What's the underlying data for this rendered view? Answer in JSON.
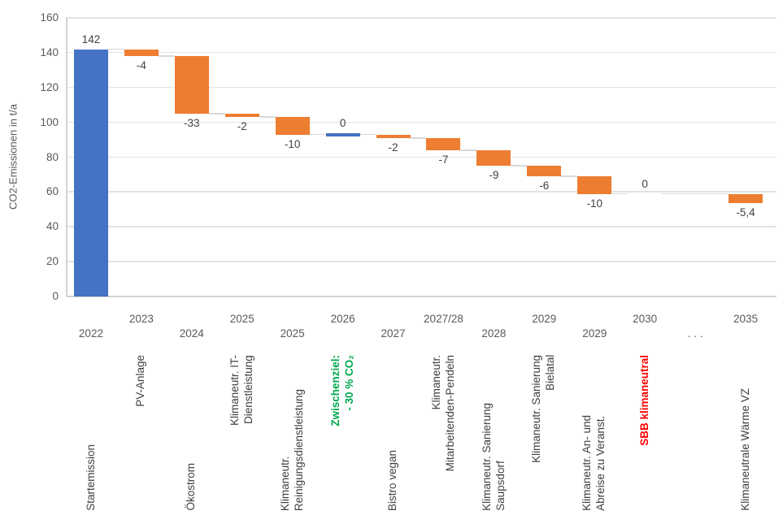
{
  "chart_data": {
    "type": "waterfall",
    "title": "",
    "ylabel": "CO2-Emissionen in t/a",
    "ylim": [
      0,
      160
    ],
    "yticks": [
      0,
      20,
      40,
      60,
      80,
      100,
      120,
      140,
      160
    ],
    "grid": "horizontal",
    "legend": "none",
    "colors": {
      "start_bar": "#4472C4",
      "decrease_bar": "#ED7D31",
      "milestone_line": "#4472C4",
      "connector": "#D9D9D9",
      "gridline": "#E3E3E3",
      "axis_line": "#D2D2D2",
      "axis_text": "#595959",
      "value_label": "#404040",
      "category_label": "#404040",
      "highlight_green": "#00A94F",
      "highlight_red": "#FF0000"
    },
    "categories": [
      {
        "year": "2022",
        "year_row": "lower",
        "label": "Startemission",
        "label_anchor": "bottom",
        "kind": "start",
        "value": 142,
        "value_label": "142",
        "cumulative_after": 142
      },
      {
        "year": "2023",
        "year_row": "upper",
        "label": "PV-Anlage",
        "label_anchor": "top",
        "kind": "decrease",
        "value": -4,
        "value_label": "-4",
        "cumulative_after": 138
      },
      {
        "year": "2024",
        "year_row": "lower",
        "label": "Ökostrom",
        "label_anchor": "bottom",
        "kind": "decrease",
        "value": -33,
        "value_label": "-33",
        "cumulative_after": 105
      },
      {
        "year": "2025",
        "year_row": "upper",
        "label": "Klimaneutr. IT-\nDienstleistung",
        "label_anchor": "top",
        "kind": "decrease",
        "value": -2,
        "value_label": "-2",
        "cumulative_after": 103
      },
      {
        "year": "2025",
        "year_row": "lower",
        "label": "Klimaneutr.\nReinigungsdienstleistung",
        "label_anchor": "bottom",
        "kind": "decrease",
        "value": -10,
        "value_label": "-10",
        "cumulative_after": 93
      },
      {
        "year": "2026",
        "year_row": "upper",
        "label": "Zwischenziel:\n- 30 % CO₂",
        "label_anchor": "top",
        "label_color": "#00A94F",
        "label_bold": true,
        "kind": "milestone",
        "value": 0,
        "value_label": "0",
        "cumulative_after": 93
      },
      {
        "year": "2027",
        "year_row": "lower",
        "label": "Bistro vegan",
        "label_anchor": "bottom",
        "kind": "decrease",
        "value": -2,
        "value_label": "-2",
        "cumulative_after": 91
      },
      {
        "year": "2027/28",
        "year_row": "upper",
        "label": "Klimaneutr.\nMitarbeitenden-Pendeln",
        "label_anchor": "top",
        "kind": "decrease",
        "value": -7,
        "value_label": "-7",
        "cumulative_after": 84
      },
      {
        "year": "2028",
        "year_row": "lower",
        "label": "Klimaneutr. Sanierung\nSaupsdorf",
        "label_anchor": "bottom",
        "kind": "decrease",
        "value": -9,
        "value_label": "-9",
        "cumulative_after": 75
      },
      {
        "year": "2029",
        "year_row": "upper",
        "label": "Klimaneutr. Sanierung\nBielatal",
        "label_anchor": "top",
        "kind": "decrease",
        "value": -6,
        "value_label": "-6",
        "cumulative_after": 69
      },
      {
        "year": "2029",
        "year_row": "lower",
        "label": "Klimaneutr. An- und\nAbreise zu Veranst.",
        "label_anchor": "bottom",
        "kind": "decrease",
        "value": -10,
        "value_label": "-10",
        "cumulative_after": 59
      },
      {
        "year": "2030",
        "year_row": "upper",
        "label": "SBB klimaneutral",
        "label_anchor": "top",
        "label_color": "#FF0000",
        "label_bold": true,
        "kind": "zero",
        "value": 0,
        "value_label": "0",
        "cumulative_after": 59
      },
      {
        "year": ". . .",
        "year_row": "lower",
        "label": "",
        "kind": "gap",
        "cumulative_after": 59
      },
      {
        "year": "2035",
        "year_row": "upper",
        "label": "Klimaneutrale Wärme VZ",
        "label_anchor": "bottom",
        "kind": "decrease",
        "value": -5.4,
        "value_label": "-5,4",
        "cumulative_after": 53.6
      }
    ]
  }
}
